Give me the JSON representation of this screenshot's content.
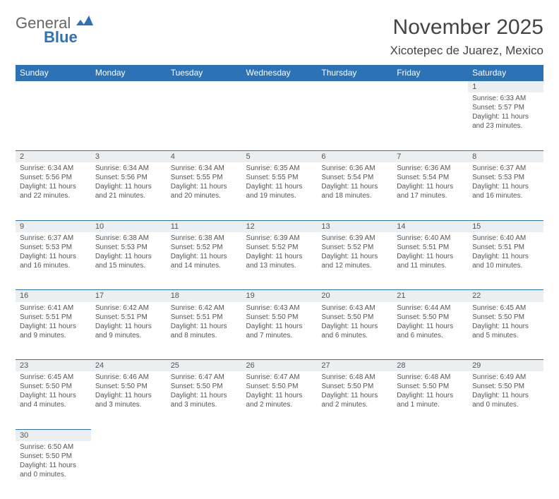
{
  "logo": {
    "general": "General",
    "blue": "Blue"
  },
  "title": "November 2025",
  "location": "Xicotepec de Juarez, Mexico",
  "colors": {
    "header_bg": "#2d72b5",
    "daynum_bg": "#eceff1",
    "border": "#2d72b5"
  },
  "weekdays": [
    "Sunday",
    "Monday",
    "Tuesday",
    "Wednesday",
    "Thursday",
    "Friday",
    "Saturday"
  ],
  "weeks": [
    [
      null,
      null,
      null,
      null,
      null,
      null,
      {
        "n": "1",
        "sr": "Sunrise: 6:33 AM",
        "ss": "Sunset: 5:57 PM",
        "dl": "Daylight: 11 hours and 23 minutes."
      }
    ],
    [
      {
        "n": "2",
        "sr": "Sunrise: 6:34 AM",
        "ss": "Sunset: 5:56 PM",
        "dl": "Daylight: 11 hours and 22 minutes."
      },
      {
        "n": "3",
        "sr": "Sunrise: 6:34 AM",
        "ss": "Sunset: 5:56 PM",
        "dl": "Daylight: 11 hours and 21 minutes."
      },
      {
        "n": "4",
        "sr": "Sunrise: 6:34 AM",
        "ss": "Sunset: 5:55 PM",
        "dl": "Daylight: 11 hours and 20 minutes."
      },
      {
        "n": "5",
        "sr": "Sunrise: 6:35 AM",
        "ss": "Sunset: 5:55 PM",
        "dl": "Daylight: 11 hours and 19 minutes."
      },
      {
        "n": "6",
        "sr": "Sunrise: 6:36 AM",
        "ss": "Sunset: 5:54 PM",
        "dl": "Daylight: 11 hours and 18 minutes."
      },
      {
        "n": "7",
        "sr": "Sunrise: 6:36 AM",
        "ss": "Sunset: 5:54 PM",
        "dl": "Daylight: 11 hours and 17 minutes."
      },
      {
        "n": "8",
        "sr": "Sunrise: 6:37 AM",
        "ss": "Sunset: 5:53 PM",
        "dl": "Daylight: 11 hours and 16 minutes."
      }
    ],
    [
      {
        "n": "9",
        "sr": "Sunrise: 6:37 AM",
        "ss": "Sunset: 5:53 PM",
        "dl": "Daylight: 11 hours and 16 minutes."
      },
      {
        "n": "10",
        "sr": "Sunrise: 6:38 AM",
        "ss": "Sunset: 5:53 PM",
        "dl": "Daylight: 11 hours and 15 minutes."
      },
      {
        "n": "11",
        "sr": "Sunrise: 6:38 AM",
        "ss": "Sunset: 5:52 PM",
        "dl": "Daylight: 11 hours and 14 minutes."
      },
      {
        "n": "12",
        "sr": "Sunrise: 6:39 AM",
        "ss": "Sunset: 5:52 PM",
        "dl": "Daylight: 11 hours and 13 minutes."
      },
      {
        "n": "13",
        "sr": "Sunrise: 6:39 AM",
        "ss": "Sunset: 5:52 PM",
        "dl": "Daylight: 11 hours and 12 minutes."
      },
      {
        "n": "14",
        "sr": "Sunrise: 6:40 AM",
        "ss": "Sunset: 5:51 PM",
        "dl": "Daylight: 11 hours and 11 minutes."
      },
      {
        "n": "15",
        "sr": "Sunrise: 6:40 AM",
        "ss": "Sunset: 5:51 PM",
        "dl": "Daylight: 11 hours and 10 minutes."
      }
    ],
    [
      {
        "n": "16",
        "sr": "Sunrise: 6:41 AM",
        "ss": "Sunset: 5:51 PM",
        "dl": "Daylight: 11 hours and 9 minutes."
      },
      {
        "n": "17",
        "sr": "Sunrise: 6:42 AM",
        "ss": "Sunset: 5:51 PM",
        "dl": "Daylight: 11 hours and 9 minutes."
      },
      {
        "n": "18",
        "sr": "Sunrise: 6:42 AM",
        "ss": "Sunset: 5:51 PM",
        "dl": "Daylight: 11 hours and 8 minutes."
      },
      {
        "n": "19",
        "sr": "Sunrise: 6:43 AM",
        "ss": "Sunset: 5:50 PM",
        "dl": "Daylight: 11 hours and 7 minutes."
      },
      {
        "n": "20",
        "sr": "Sunrise: 6:43 AM",
        "ss": "Sunset: 5:50 PM",
        "dl": "Daylight: 11 hours and 6 minutes."
      },
      {
        "n": "21",
        "sr": "Sunrise: 6:44 AM",
        "ss": "Sunset: 5:50 PM",
        "dl": "Daylight: 11 hours and 6 minutes."
      },
      {
        "n": "22",
        "sr": "Sunrise: 6:45 AM",
        "ss": "Sunset: 5:50 PM",
        "dl": "Daylight: 11 hours and 5 minutes."
      }
    ],
    [
      {
        "n": "23",
        "sr": "Sunrise: 6:45 AM",
        "ss": "Sunset: 5:50 PM",
        "dl": "Daylight: 11 hours and 4 minutes."
      },
      {
        "n": "24",
        "sr": "Sunrise: 6:46 AM",
        "ss": "Sunset: 5:50 PM",
        "dl": "Daylight: 11 hours and 3 minutes."
      },
      {
        "n": "25",
        "sr": "Sunrise: 6:47 AM",
        "ss": "Sunset: 5:50 PM",
        "dl": "Daylight: 11 hours and 3 minutes."
      },
      {
        "n": "26",
        "sr": "Sunrise: 6:47 AM",
        "ss": "Sunset: 5:50 PM",
        "dl": "Daylight: 11 hours and 2 minutes."
      },
      {
        "n": "27",
        "sr": "Sunrise: 6:48 AM",
        "ss": "Sunset: 5:50 PM",
        "dl": "Daylight: 11 hours and 2 minutes."
      },
      {
        "n": "28",
        "sr": "Sunrise: 6:48 AM",
        "ss": "Sunset: 5:50 PM",
        "dl": "Daylight: 11 hours and 1 minute."
      },
      {
        "n": "29",
        "sr": "Sunrise: 6:49 AM",
        "ss": "Sunset: 5:50 PM",
        "dl": "Daylight: 11 hours and 0 minutes."
      }
    ],
    [
      {
        "n": "30",
        "sr": "Sunrise: 6:50 AM",
        "ss": "Sunset: 5:50 PM",
        "dl": "Daylight: 11 hours and 0 minutes."
      },
      null,
      null,
      null,
      null,
      null,
      null
    ]
  ]
}
